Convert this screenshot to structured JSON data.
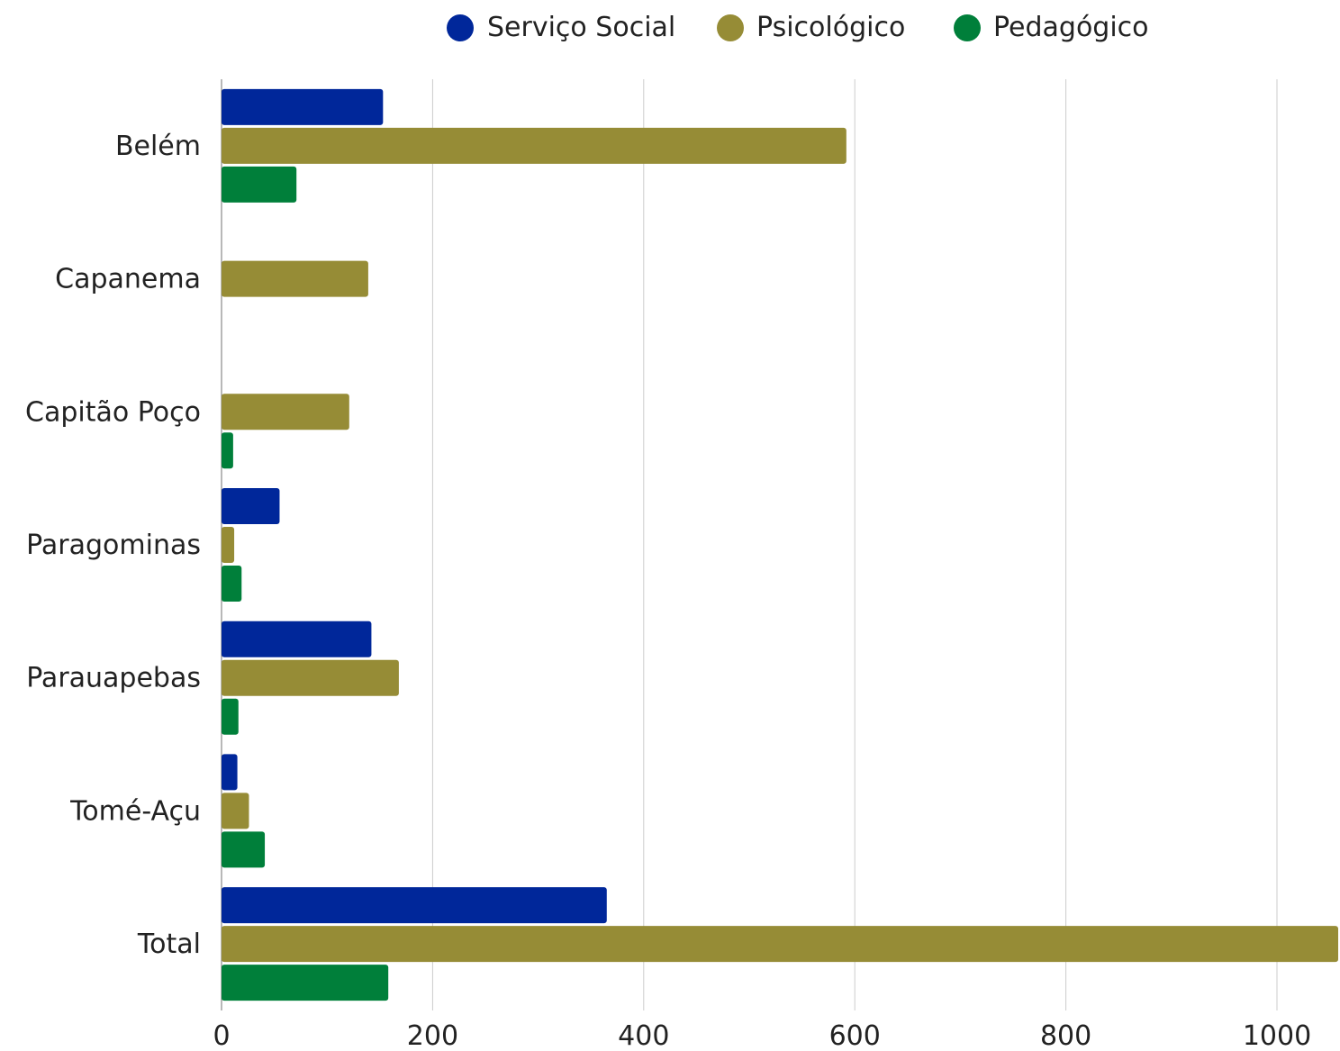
{
  "chart_data": {
    "type": "bar",
    "orientation": "horizontal",
    "categories": [
      "Belém",
      "Capanema",
      "Capitão Poço",
      "Paragominas",
      "Parauapebas",
      "Tomé-Açu",
      "Total"
    ],
    "series": [
      {
        "name": "Serviço Social",
        "color": "#00279a",
        "values": [
          153,
          0,
          0,
          55,
          142,
          15,
          365
        ]
      },
      {
        "name": "Psicológico",
        "color": "#968c36",
        "values": [
          592,
          139,
          121,
          12,
          168,
          26,
          1059
        ]
      },
      {
        "name": "Pedagógico",
        "color": "#007f3a",
        "values": [
          71,
          0,
          11,
          19,
          16,
          41,
          158
        ]
      }
    ],
    "xticks": [
      "0",
      "200",
      "400",
      "600",
      "800",
      "1000"
    ],
    "xlim": [
      0,
      1060
    ],
    "grid": true,
    "legend_position": "top"
  }
}
